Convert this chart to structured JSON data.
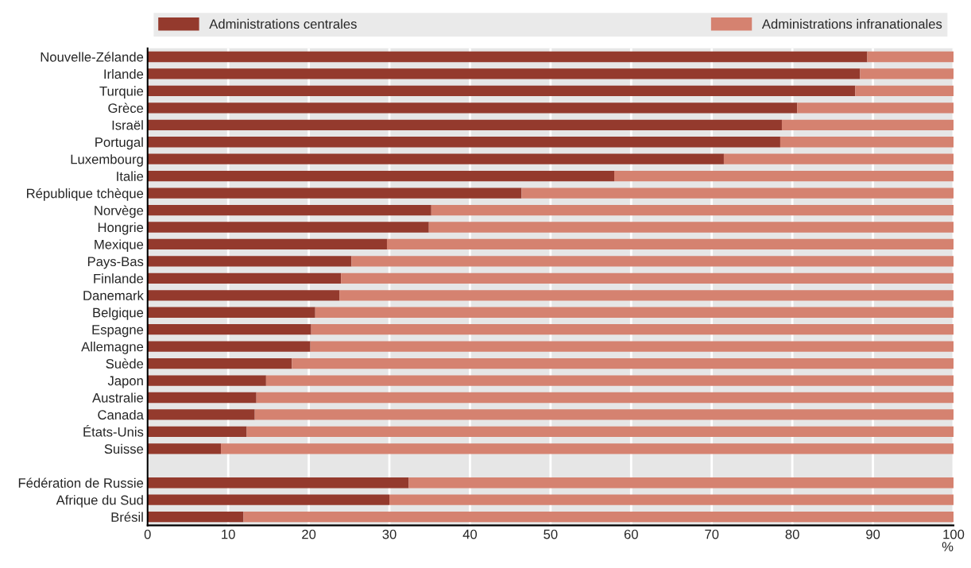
{
  "chart_data": {
    "type": "bar",
    "orientation": "horizontal",
    "stacked": true,
    "xlabel": "%",
    "categories": [
      "Nouvelle-Zélande",
      "Irlande",
      "Turquie",
      "Grèce",
      "Israël",
      "Portugal",
      "Luxembourg",
      "Italie",
      "République tchèque",
      "Norvège",
      "Hongrie",
      "Mexique",
      "Pays-Bas",
      "Finlande",
      "Danemark",
      "Belgique",
      "Espagne",
      "Allemagne",
      "Suède",
      "Japon",
      "Australie",
      "Canada",
      "États-Unis",
      "Suisse",
      null,
      "Fédération de Russie",
      "Afrique du Sud",
      "Brésil"
    ],
    "series": [
      {
        "name": "Administrations centrales",
        "color": "#943a2d",
        "values": [
          89.3,
          88.4,
          87.8,
          80.6,
          78.7,
          78.5,
          71.5,
          57.9,
          46.4,
          35.2,
          34.9,
          29.7,
          25.3,
          24.0,
          23.8,
          20.8,
          20.3,
          20.2,
          17.9,
          14.7,
          13.5,
          13.3,
          12.3,
          9.1,
          null,
          32.4,
          30.0,
          11.9
        ]
      },
      {
        "name": "Administrations infranationales",
        "color": "#d58270",
        "values": [
          10.7,
          11.6,
          12.2,
          19.4,
          21.3,
          21.5,
          28.5,
          42.1,
          53.6,
          64.8,
          65.1,
          70.3,
          74.7,
          76.0,
          76.2,
          79.2,
          79.7,
          79.8,
          82.1,
          85.3,
          86.5,
          86.7,
          87.7,
          90.9,
          null,
          67.6,
          70.0,
          88.1
        ]
      }
    ],
    "xlim": [
      0,
      100
    ],
    "xticks": [
      0,
      10,
      20,
      30,
      40,
      50,
      60,
      70,
      80,
      90,
      100
    ],
    "grid": "x",
    "legend": "top"
  }
}
